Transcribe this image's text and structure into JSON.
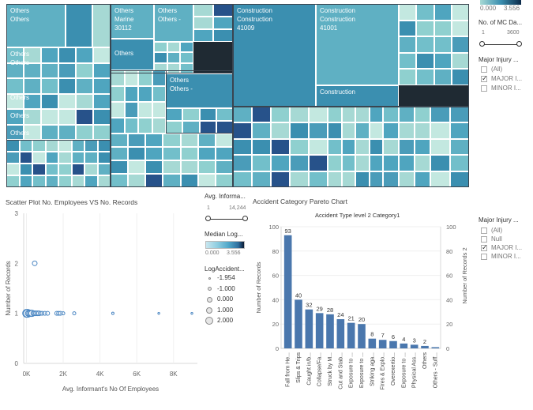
{
  "colors": {
    "tile_light": "#a6d9d4",
    "tile_mid": "#5fb0c3",
    "tile_dark": "#3b8fb0",
    "tile_navy": "#27528a",
    "bar": "#4a77ad",
    "scatter_stroke": "#4a86c2"
  },
  "treemap": {
    "labels": [
      {
        "text": "Others\nOthers"
      },
      {
        "text": "Others\nMarine\n30112"
      },
      {
        "text": "Others\nOthers -"
      },
      {
        "text": "Construction\nConstruction\n41009"
      },
      {
        "text": "Construction\nConstruction\n41001"
      },
      {
        "text": "Others\nOthers"
      },
      {
        "text": "Others"
      },
      {
        "text": "Others"
      },
      {
        "text": "Others"
      },
      {
        "text": "Others"
      },
      {
        "text": "Others\nOthers -"
      },
      {
        "text": "Construction"
      }
    ]
  },
  "filters": {
    "top_legend": {
      "min": "0.000",
      "max": "3.556"
    },
    "mc_days": {
      "title": "No. of MC Da...",
      "min": "1",
      "max": "3600"
    },
    "injury1": {
      "title": "Major Injury ...",
      "options": [
        {
          "label": "(All)",
          "checked": false
        },
        {
          "label": "MAJOR I...",
          "checked": true
        },
        {
          "label": "MINOR I...",
          "checked": false
        }
      ]
    },
    "informant": {
      "title": "Avg. Informa...",
      "min": "1",
      "max": "14,244"
    },
    "median_log": {
      "title": "Median Log...",
      "min": "0.000",
      "max": "3.556"
    },
    "log_accident": {
      "title": "LogAccident...",
      "items": [
        "-1.954",
        "-1.000",
        "0.000",
        "1.000",
        "2.000"
      ]
    },
    "injury2": {
      "title": "Major Injury ...",
      "options": [
        {
          "label": "(All)",
          "checked": false
        },
        {
          "label": "Null",
          "checked": false
        },
        {
          "label": "MAJOR I...",
          "checked": true
        },
        {
          "label": "MINOR I...",
          "checked": false
        }
      ]
    }
  },
  "scatter": {
    "title": "Scatter Plot No. Employees VS No. Records",
    "xlabel": "Avg. Informant's No Of Employees",
    "ylabel": "Number of Records"
  },
  "pareto": {
    "title": "Accident Category Pareto Chart",
    "axis_title": "Accident Type level 2 Category1",
    "left_label": "Number of Records",
    "right_label": "Number of Records 2"
  },
  "chart_data": [
    {
      "type": "scatter",
      "title": "Scatter Plot No. Employees VS No. Records",
      "xlabel": "Avg. Informant's No Of Employees",
      "ylabel": "Number of Records",
      "x_ticks": [
        "0K",
        "2K",
        "4K",
        "6K",
        "8K"
      ],
      "y_ticks": [
        "0",
        "1",
        "2",
        "3"
      ],
      "xlim": [
        -150,
        9300
      ],
      "ylim": [
        0,
        3
      ],
      "points": [
        {
          "x": 10,
          "y": 1,
          "r": 5
        },
        {
          "x": 60,
          "y": 1,
          "r": 5
        },
        {
          "x": 120,
          "y": 1,
          "r": 4
        },
        {
          "x": 180,
          "y": 1,
          "r": 4
        },
        {
          "x": 240,
          "y": 1,
          "r": 4
        },
        {
          "x": 300,
          "y": 1,
          "r": 4
        },
        {
          "x": 380,
          "y": 1,
          "r": 3
        },
        {
          "x": 450,
          "y": 1,
          "r": 3
        },
        {
          "x": 520,
          "y": 1,
          "r": 3
        },
        {
          "x": 600,
          "y": 1,
          "r": 3
        },
        {
          "x": 680,
          "y": 1,
          "r": 3
        },
        {
          "x": 760,
          "y": 1,
          "r": 2.5
        },
        {
          "x": 850,
          "y": 1,
          "r": 2.5
        },
        {
          "x": 1000,
          "y": 1,
          "r": 2.5
        },
        {
          "x": 1150,
          "y": 1,
          "r": 2.5
        },
        {
          "x": 1650,
          "y": 1,
          "r": 2.5
        },
        {
          "x": 1750,
          "y": 1,
          "r": 2.5
        },
        {
          "x": 1850,
          "y": 1,
          "r": 2.5
        },
        {
          "x": 2000,
          "y": 1,
          "r": 2
        },
        {
          "x": 2600,
          "y": 1,
          "r": 2
        },
        {
          "x": 4700,
          "y": 1,
          "r": 1.5
        },
        {
          "x": 7200,
          "y": 1,
          "r": 1.2
        },
        {
          "x": 9000,
          "y": 1,
          "r": 1.2
        },
        {
          "x": 450,
          "y": 2,
          "r": 3
        }
      ]
    },
    {
      "type": "bar",
      "title": "Accident Category Pareto Chart",
      "xlabel": "Accident Type level 2 Category1",
      "ylabel": "Number of Records",
      "ylim": [
        0,
        100
      ],
      "y_ticks": [
        "0",
        "20",
        "40",
        "60",
        "80",
        "100"
      ],
      "categories": [
        "Fall from He...",
        "Slips & Trips",
        "Caught in/b...",
        "Collapse/Fa...",
        "Struck by M...",
        "Cut and Stab...",
        "Exposure to ...",
        "Exposure to ...",
        "Striking aga...",
        "Fires & Explo...",
        "Overexertio...",
        "Exposure to ...",
        "Physical Ass...",
        "Others",
        "Others - Suff..."
      ],
      "values": [
        93,
        40,
        32,
        29,
        28,
        24,
        21,
        20,
        8,
        7,
        6,
        4,
        3,
        2,
        1
      ],
      "value_labels": [
        "93",
        "40",
        "32",
        "29",
        "28",
        "24",
        "21",
        "20",
        "8",
        "7",
        "6",
        "4",
        "3",
        "2",
        ""
      ]
    }
  ]
}
